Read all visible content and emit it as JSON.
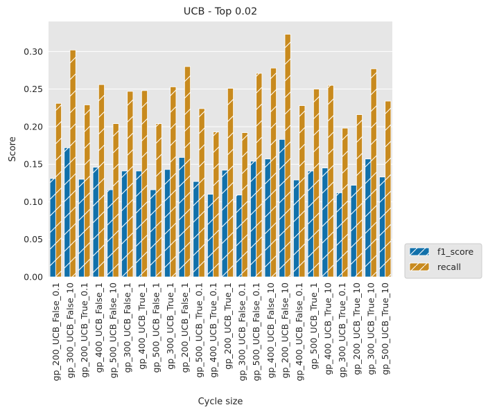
{
  "chart_data": {
    "type": "bar",
    "title": "UCB - Top 0.02",
    "xlabel": "Cycle size",
    "ylabel": "Score",
    "ylim": [
      0,
      0.34
    ],
    "yticks": [
      "0.00",
      "0.05",
      "0.10",
      "0.15",
      "0.20",
      "0.25",
      "0.30"
    ],
    "grid": true,
    "legend_position": "outside-lower-right",
    "categories": [
      "gp_200_UCB_False_0.1",
      "gp_300_UCB_False_10",
      "gp_200_UCB_True_0.1",
      "gp_400_UCB_False_1",
      "gp_500_UCB_False_10",
      "gp_300_UCB_False_1",
      "gp_400_UCB_True_1",
      "gp_500_UCB_False_1",
      "gp_300_UCB_True_1",
      "gp_200_UCB_False_1",
      "gp_500_UCB_True_0.1",
      "gp_400_UCB_True_0.1",
      "gp_200_UCB_True_1",
      "gp_300_UCB_False_0.1",
      "gp_500_UCB_False_0.1",
      "gp_400_UCB_False_10",
      "gp_200_UCB_False_10",
      "gp_400_UCB_False_0.1",
      "gp_500_UCB_True_1",
      "gp_400_UCB_True_10",
      "gp_300_UCB_True_0.1",
      "gp_200_UCB_True_10",
      "gp_300_UCB_True_10",
      "gp_500_UCB_True_10"
    ],
    "series": [
      {
        "name": "f1_score",
        "color": "#1170aa",
        "values": [
          0.131,
          0.172,
          0.13,
          0.146,
          0.116,
          0.141,
          0.141,
          0.116,
          0.143,
          0.159,
          0.127,
          0.11,
          0.142,
          0.109,
          0.154,
          0.157,
          0.183,
          0.129,
          0.141,
          0.145,
          0.112,
          0.122,
          0.157,
          0.133
        ]
      },
      {
        "name": "recall",
        "color": "#c88a1e",
        "values": [
          0.231,
          0.302,
          0.229,
          0.256,
          0.204,
          0.247,
          0.248,
          0.204,
          0.253,
          0.28,
          0.224,
          0.193,
          0.251,
          0.192,
          0.271,
          0.278,
          0.323,
          0.228,
          0.25,
          0.255,
          0.198,
          0.216,
          0.277,
          0.234
        ]
      }
    ]
  }
}
